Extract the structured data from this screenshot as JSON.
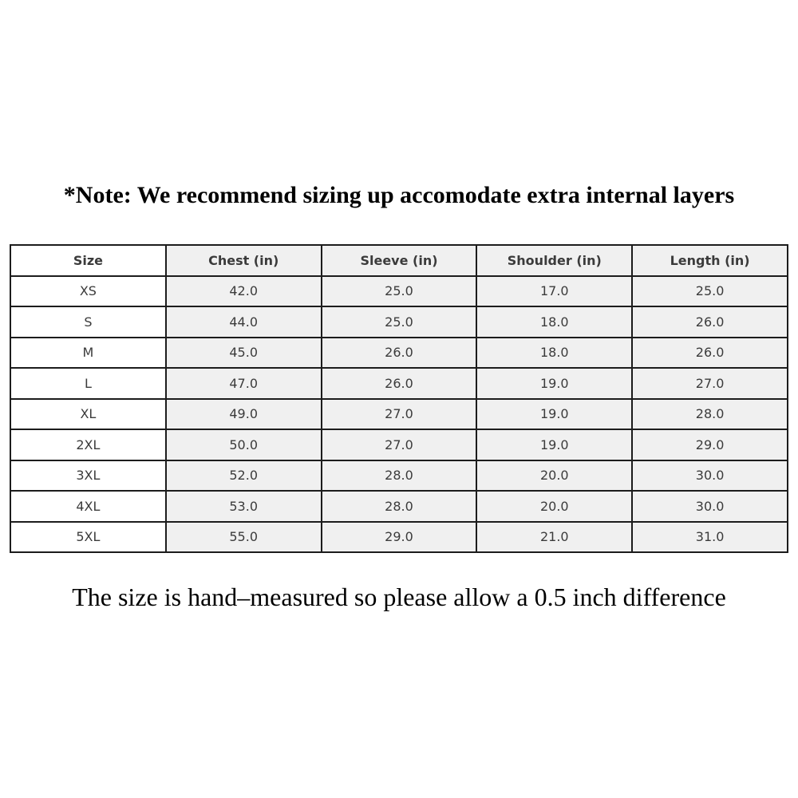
{
  "page": {
    "top_note": "*Note: We recommend sizing up accomodate extra internal layers",
    "bottom_note": "The size is hand–measured so please allow a 0.5 inch difference"
  },
  "table": {
    "headers": [
      "Size",
      "Chest (in)",
      "Sleeve (in)",
      "Shoulder (in)",
      "Length (in)"
    ],
    "rows": [
      [
        "XS",
        "42.0",
        "25.0",
        "17.0",
        "25.0"
      ],
      [
        "S",
        "44.0",
        "25.0",
        "18.0",
        "26.0"
      ],
      [
        "M",
        "45.0",
        "26.0",
        "18.0",
        "26.0"
      ],
      [
        "L",
        "47.0",
        "26.0",
        "19.0",
        "27.0"
      ],
      [
        "XL",
        "49.0",
        "27.0",
        "19.0",
        "28.0"
      ],
      [
        "2XL",
        "50.0",
        "27.0",
        "19.0",
        "29.0"
      ],
      [
        "3XL",
        "52.0",
        "28.0",
        "20.0",
        "30.0"
      ],
      [
        "4XL",
        "53.0",
        "28.0",
        "20.0",
        "30.0"
      ],
      [
        "5XL",
        "55.0",
        "29.0",
        "21.0",
        "31.0"
      ]
    ]
  },
  "colors": {
    "cell_bg": "#f0f0f0",
    "size_col_bg": "#ffffff",
    "border": "#1c1c1c",
    "cell_text": "#3b3b3b",
    "note_text": "#000000",
    "page_bg": "#ffffff"
  }
}
